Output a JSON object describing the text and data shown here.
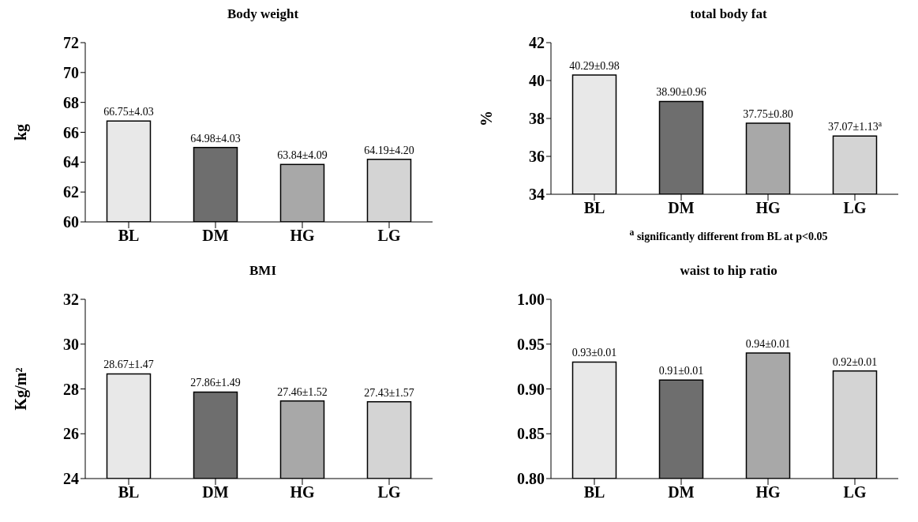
{
  "chart_data": [
    {
      "type": "bar",
      "title": "Body weight",
      "ylabel": "kg",
      "categories": [
        "BL",
        "DM",
        "HG",
        "LG"
      ],
      "values": [
        66.75,
        64.98,
        63.84,
        64.19
      ],
      "colors": [
        "#e8e8e8",
        "#6e6e6e",
        "#a8a8a8",
        "#d4d4d4"
      ],
      "value_labels": [
        "66.75±4.03",
        "64.98±4.03",
        "63.84±4.09",
        "64.19±4.20"
      ],
      "ylim": [
        60,
        72
      ],
      "yticks": [
        60,
        62,
        64,
        66,
        68,
        70,
        72
      ]
    },
    {
      "type": "bar",
      "title": "total body fat",
      "ylabel": "%",
      "categories": [
        "BL",
        "DM",
        "HG",
        "LG"
      ],
      "values": [
        40.29,
        38.9,
        37.75,
        37.07
      ],
      "colors": [
        "#e8e8e8",
        "#6e6e6e",
        "#a8a8a8",
        "#d4d4d4"
      ],
      "value_labels": [
        "40.29±0.98",
        "38.90±0.96",
        "37.75±0.80",
        "37.07±1.13$^{a}$"
      ],
      "ylim": [
        34,
        42
      ],
      "yticks": [
        34,
        36,
        38,
        40,
        42
      ],
      "annotations": [
        "$^{a}$ significantly different from BL at p<0.05"
      ]
    },
    {
      "type": "bar",
      "title": "BMI",
      "ylabel": "Kg/m²",
      "categories": [
        "BL",
        "DM",
        "HG",
        "LG"
      ],
      "values": [
        28.67,
        27.86,
        27.46,
        27.43
      ],
      "colors": [
        "#e8e8e8",
        "#6e6e6e",
        "#a8a8a8",
        "#d4d4d4"
      ],
      "value_labels": [
        "28.67±1.47",
        "27.86±1.49",
        "27.46±1.52",
        "27.43±1.57"
      ],
      "ylim": [
        24,
        32
      ],
      "yticks": [
        24,
        26,
        28,
        30,
        32
      ]
    },
    {
      "type": "bar",
      "title": "waist to hip ratio",
      "categories": [
        "BL",
        "DM",
        "HG",
        "LG"
      ],
      "values": [
        0.93,
        0.91,
        0.94,
        0.92
      ],
      "colors": [
        "#e8e8e8",
        "#6e6e6e",
        "#a8a8a8",
        "#d4d4d4"
      ],
      "value_labels": [
        "0.93±0.01",
        "0.91±0.01",
        "0.94±0.01",
        "0.92±0.01"
      ],
      "ylim": [
        0.8,
        1.0
      ],
      "yticks": [
        {
          "value": 0.8,
          "label": "0.80"
        },
        {
          "value": 0.85,
          "label": "0.85"
        },
        {
          "value": 0.9,
          "label": "0.90"
        },
        {
          "value": 0.95,
          "label": "0.95"
        },
        {
          "value": 1.0,
          "label": "1.00"
        }
      ]
    }
  ]
}
